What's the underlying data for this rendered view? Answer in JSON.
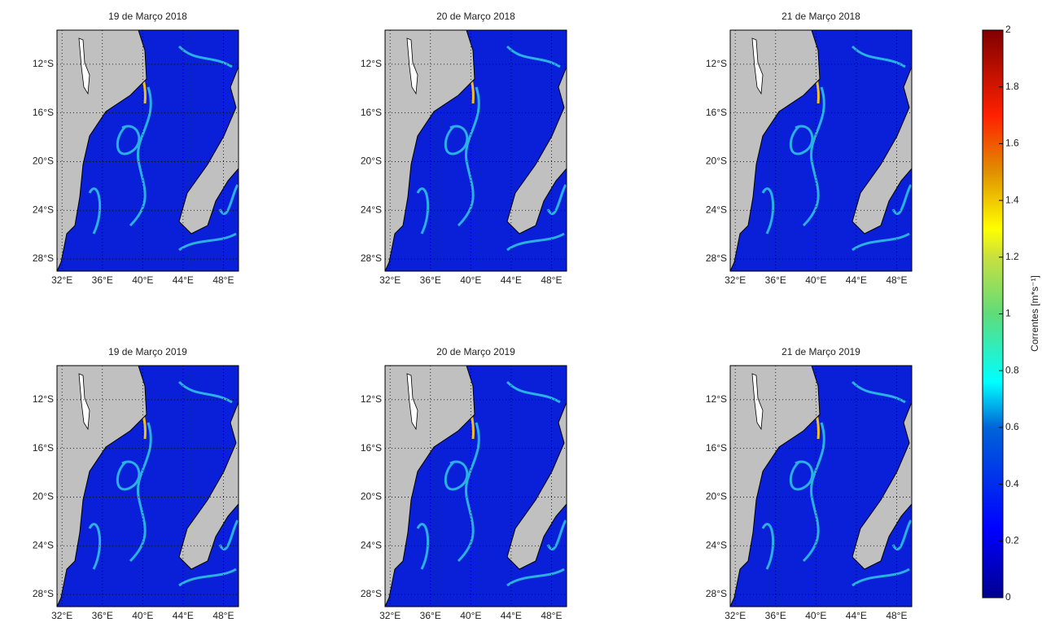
{
  "panels": [
    {
      "title": "19 de Março 2018"
    },
    {
      "title": "20 de Março 2018"
    },
    {
      "title": "21 de Março 2018"
    },
    {
      "title": "19 de Março 2019"
    },
    {
      "title": "20 de Março 2019"
    },
    {
      "title": "21 de Março 2019"
    }
  ],
  "map": {
    "xlim": [
      31.5,
      49.5
    ],
    "ylim": [
      -29,
      -9.2
    ],
    "xticks": [
      {
        "value": 32,
        "label": "32°E"
      },
      {
        "value": 36,
        "label": "36°E"
      },
      {
        "value": 40,
        "label": "40°E"
      },
      {
        "value": 44,
        "label": "44°E"
      },
      {
        "value": 48,
        "label": "48°E"
      }
    ],
    "yticks": [
      {
        "value": -12,
        "label": "12°S"
      },
      {
        "value": -16,
        "label": "16°S"
      },
      {
        "value": -20,
        "label": "20°S"
      },
      {
        "value": -24,
        "label": "24°S"
      },
      {
        "value": -28,
        "label": "28°S"
      }
    ],
    "grid": true
  },
  "colorbar": {
    "label": "Correntes [m*s⁻¹]",
    "lim": [
      0,
      2
    ],
    "ticks": [
      0,
      0.2,
      0.4,
      0.6,
      0.8,
      1,
      1.2,
      1.4,
      1.6,
      1.8,
      2
    ]
  }
}
